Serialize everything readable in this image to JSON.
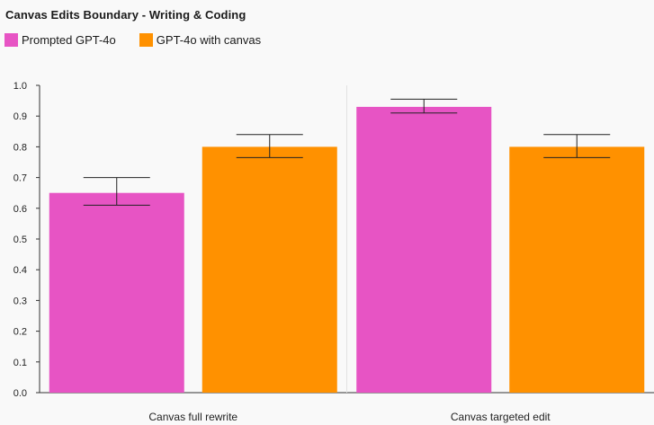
{
  "chart_data": {
    "type": "bar",
    "title": "Canvas Edits Boundary - Writing & Coding",
    "categories": [
      "Canvas full rewrite",
      "Canvas targeted edit"
    ],
    "series": [
      {
        "name": "Prompted GPT-4o",
        "color": "#e754c4",
        "values": [
          0.65,
          0.93
        ],
        "error_low": [
          0.61,
          0.91
        ],
        "error_high": [
          0.7,
          0.955
        ]
      },
      {
        "name": "GPT-4o with canvas",
        "color": "#ff9100",
        "values": [
          0.8,
          0.8
        ],
        "error_low": [
          0.765,
          0.765
        ],
        "error_high": [
          0.84,
          0.84
        ]
      }
    ],
    "ylim": [
      0,
      1.0
    ],
    "yticks": [
      "0.0",
      "0.1",
      "0.2",
      "0.3",
      "0.4",
      "0.5",
      "0.6",
      "0.7",
      "0.8",
      "0.9",
      "1.0"
    ],
    "legend_position": "top-left",
    "grid": false
  }
}
